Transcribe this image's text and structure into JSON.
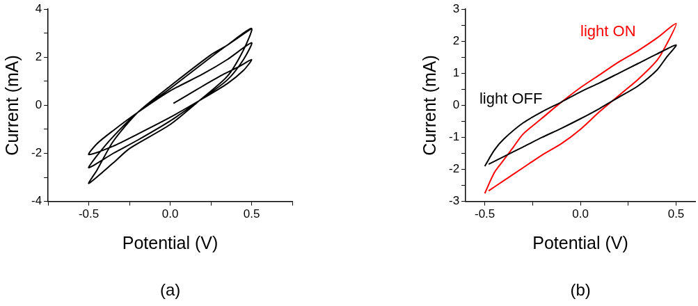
{
  "chart_data": [
    {
      "type": "line",
      "xlabel": "Potential (V)",
      "ylabel": "Current (mA)",
      "annotations": [
        "(a)"
      ],
      "xlim": [
        -0.75,
        0.75
      ],
      "xticks": [
        {
          "value": -0.75,
          "label": null
        },
        {
          "value": -0.5,
          "label": "-0.5"
        },
        {
          "value": -0.25,
          "label": null
        },
        {
          "value": 0,
          "label": "0.0"
        },
        {
          "value": 0.25,
          "label": null
        },
        {
          "value": 0.5,
          "label": "0.5"
        },
        {
          "value": 0.75,
          "label": null
        }
      ],
      "ylim": [
        -4,
        4
      ],
      "yticks": [
        -4,
        {
          "value": -3,
          "label": null
        },
        -2,
        {
          "value": -1,
          "label": null
        },
        0,
        {
          "value": 1,
          "label": null
        },
        2,
        {
          "value": 3,
          "label": null
        },
        4
      ],
      "grid": false,
      "marker": "none",
      "series": [
        {
          "color": "#000000",
          "x": [
            0.02,
            0.1,
            0.2,
            0.33,
            0.42,
            0.5,
            0.45,
            0.35,
            0.18,
            0,
            -0.2,
            -0.35,
            -0.5,
            -0.45,
            -0.35,
            -0.2,
            0,
            0.2,
            0.35,
            0.5,
            0.45,
            0.35,
            0.18,
            0,
            -0.2,
            -0.35,
            -0.5,
            -0.45,
            -0.35,
            -0.2,
            0,
            0.25,
            0.35,
            0.5,
            0.45,
            0.35,
            0.18,
            0,
            -0.25,
            -0.35,
            -0.5,
            -0.45,
            -0.35,
            -0.2,
            0,
            0.25,
            0.35,
            0.5
          ],
          "values": [
            0.08,
            0.4,
            0.8,
            1.3,
            1.6,
            1.9,
            1.45,
            0.9,
            0.2,
            -0.5,
            -1.2,
            -1.7,
            -2.05,
            -1.6,
            -1.05,
            -0.3,
            0.6,
            1.3,
            1.9,
            2.6,
            1.9,
            1.05,
            0.2,
            -0.65,
            -1.45,
            -2.0,
            -2.6,
            -2.1,
            -1.3,
            -0.3,
            0.7,
            2.0,
            2.5,
            3.2,
            2.3,
            1.2,
            0.2,
            -0.8,
            -1.8,
            -2.4,
            -3.25,
            -2.7,
            -1.5,
            -0.3,
            0.8,
            2.1,
            2.5,
            3.2
          ]
        }
      ]
    },
    {
      "type": "line",
      "xlabel": "Potential (V)",
      "ylabel": "Current (mA)",
      "annotations": [
        "(b)"
      ],
      "xlim": [
        -0.6,
        0.6
      ],
      "xticks": [
        {
          "value": -0.5,
          "label": "-0.5"
        },
        {
          "value": -0.25,
          "label": null
        },
        {
          "value": 0,
          "label": "0.0"
        },
        {
          "value": 0.25,
          "label": null
        },
        {
          "value": 0.5,
          "label": "0.5"
        }
      ],
      "ylim": [
        -3,
        3
      ],
      "yticks": [
        -3,
        {
          "value": -2.5,
          "label": null
        },
        -2,
        {
          "value": -1.5,
          "label": null
        },
        -1,
        {
          "value": -0.5,
          "label": null
        },
        0,
        {
          "value": 0.5,
          "label": null
        },
        1,
        {
          "value": 1.5,
          "label": null
        },
        2,
        {
          "value": 2.5,
          "label": null
        },
        3
      ],
      "grid": false,
      "marker": "none",
      "series": [
        {
          "name": "light OFF",
          "color": "#000000",
          "x": [
            -0.5,
            -0.45,
            -0.4,
            -0.3,
            -0.2,
            -0.1,
            0,
            0.1,
            0.2,
            0.3,
            0.4,
            0.5,
            0.45,
            0.4,
            0.3,
            0.2,
            0.1,
            0,
            -0.1,
            -0.2,
            -0.3,
            -0.4,
            -0.48
          ],
          "values": [
            -1.9,
            -1.4,
            -1.05,
            -0.55,
            -0.2,
            0.1,
            0.42,
            0.7,
            1.0,
            1.3,
            1.6,
            1.88,
            1.5,
            1.1,
            0.6,
            0.25,
            -0.1,
            -0.42,
            -0.72,
            -1.0,
            -1.3,
            -1.6,
            -1.84
          ]
        },
        {
          "name": "light ON",
          "color": "#ff0000",
          "x": [
            -0.5,
            -0.45,
            -0.4,
            -0.35,
            -0.3,
            -0.2,
            -0.12,
            0,
            0.1,
            0.2,
            0.3,
            0.4,
            0.5,
            0.45,
            0.4,
            0.3,
            0.22,
            0.1,
            0,
            -0.1,
            -0.2,
            -0.3,
            -0.4,
            -0.48
          ],
          "values": [
            -2.75,
            -2.1,
            -1.7,
            -1.3,
            -0.9,
            -0.4,
            0,
            0.55,
            0.95,
            1.35,
            1.7,
            2.1,
            2.55,
            1.9,
            1.4,
            0.8,
            0.4,
            -0.2,
            -0.75,
            -1.2,
            -1.55,
            -1.95,
            -2.35,
            -2.67
          ]
        }
      ]
    }
  ]
}
